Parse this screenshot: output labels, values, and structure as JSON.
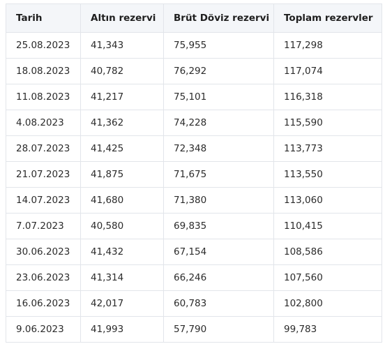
{
  "table": {
    "headers": [
      "Tarih",
      "Altın rezervi",
      "Brüt Döviz rezervi",
      "Toplam rezervler"
    ],
    "rows": [
      [
        "25.08.2023",
        "41,343",
        "75,955",
        "117,298"
      ],
      [
        "18.08.2023",
        "40,782",
        "76,292",
        "117,074"
      ],
      [
        "11.08.2023",
        "41,217",
        "75,101",
        "116,318"
      ],
      [
        "4.08.2023",
        "41,362",
        "74,228",
        "115,590"
      ],
      [
        "28.07.2023",
        "41,425",
        "72,348",
        "113,773"
      ],
      [
        "21.07.2023",
        "41,875",
        "71,675",
        "113,550"
      ],
      [
        "14.07.2023",
        "41,680",
        "71,380",
        "113,060"
      ],
      [
        "7.07.2023",
        "40,580",
        "69,835",
        "110,415"
      ],
      [
        "30.06.2023",
        "41,432",
        "67,154",
        "108,586"
      ],
      [
        "23.06.2023",
        "41,314",
        "66,246",
        "107,560"
      ],
      [
        "16.06.2023",
        "42,017",
        "60,783",
        "102,800"
      ],
      [
        "9.06.2023",
        "41,993",
        "57,790",
        "99,783"
      ]
    ]
  }
}
